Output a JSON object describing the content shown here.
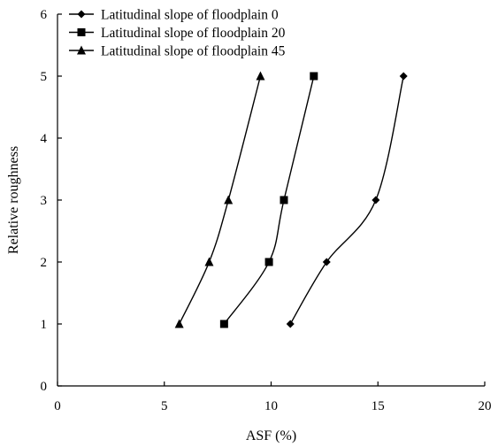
{
  "chart_data": {
    "type": "line",
    "title": "",
    "xlabel": "ASF (%)",
    "ylabel": "Relative roughness",
    "xlim": [
      0,
      20
    ],
    "ylim": [
      0,
      6
    ],
    "xticks": [
      0,
      5,
      10,
      15,
      20
    ],
    "yticks": [
      0,
      1,
      2,
      3,
      4,
      5,
      6
    ],
    "grid": false,
    "legend_position": "top-left",
    "series": [
      {
        "name": "Latitudinal slope of floodplain 0",
        "marker": "diamond",
        "color": "#000000",
        "points": [
          {
            "x": 10.9,
            "y": 1
          },
          {
            "x": 12.6,
            "y": 2
          },
          {
            "x": 14.9,
            "y": 3
          },
          {
            "x": 16.2,
            "y": 5
          }
        ]
      },
      {
        "name": "Latitudinal slope of floodplain 20",
        "marker": "square",
        "color": "#000000",
        "points": [
          {
            "x": 7.8,
            "y": 1
          },
          {
            "x": 9.9,
            "y": 2
          },
          {
            "x": 10.6,
            "y": 3
          },
          {
            "x": 12.0,
            "y": 5
          }
        ]
      },
      {
        "name": "Latitudinal slope of floodplain 45",
        "marker": "triangle",
        "color": "#000000",
        "points": [
          {
            "x": 5.7,
            "y": 1
          },
          {
            "x": 7.1,
            "y": 2
          },
          {
            "x": 8.0,
            "y": 3
          },
          {
            "x": 9.5,
            "y": 5
          }
        ]
      }
    ]
  }
}
